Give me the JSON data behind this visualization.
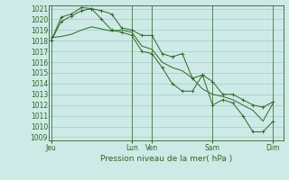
{
  "xlabel": "Pression niveau de la mer( hPa )",
  "bg_color": "#ceeae6",
  "grid_color": "#a0cccc",
  "line_color": "#2d6628",
  "ymin": 1009,
  "ymax": 1021,
  "yticks": [
    1009,
    1010,
    1011,
    1012,
    1013,
    1014,
    1015,
    1016,
    1017,
    1018,
    1019,
    1020,
    1021
  ],
  "day_labels": [
    "Jeu",
    "Lun",
    "Ven",
    "Sam",
    "Dim"
  ],
  "day_positions": [
    0.0,
    4.0,
    5.0,
    8.0,
    11.0
  ],
  "xmin": -0.1,
  "xmax": 11.5,
  "series1_x": [
    0,
    0.5,
    1.0,
    1.5,
    2.0,
    2.5,
    3.0,
    3.5,
    4.0,
    4.5,
    5.0,
    5.5,
    6.0,
    6.5,
    7.0,
    7.5,
    8.0,
    8.5,
    9.0,
    9.5,
    10.0,
    10.5,
    11.0
  ],
  "series1_y": [
    1018.0,
    1020.2,
    1020.5,
    1021.1,
    1021.0,
    1020.8,
    1020.5,
    1019.2,
    1019.0,
    1018.5,
    1018.5,
    1016.8,
    1016.5,
    1016.8,
    1014.5,
    1014.8,
    1014.2,
    1013.0,
    1013.0,
    1012.5,
    1012.0,
    1011.8,
    1012.3
  ],
  "series2_x": [
    0,
    0.5,
    1.0,
    1.5,
    2.0,
    2.5,
    3.0,
    3.5,
    4.0,
    4.5,
    5.0,
    5.5,
    6.0,
    6.5,
    7.0,
    7.5,
    8.0,
    8.5,
    9.0,
    9.5,
    10.0,
    10.5,
    11.0
  ],
  "series2_y": [
    1018.3,
    1018.4,
    1018.6,
    1019.0,
    1019.3,
    1019.1,
    1018.9,
    1019.0,
    1018.8,
    1017.5,
    1017.2,
    1016.0,
    1015.5,
    1015.2,
    1014.5,
    1013.5,
    1013.0,
    1012.8,
    1012.5,
    1012.0,
    1011.5,
    1010.5,
    1012.2
  ],
  "series3_x": [
    0,
    0.5,
    1.0,
    1.5,
    2.0,
    2.5,
    3.0,
    3.5,
    4.0,
    4.5,
    5.0,
    5.5,
    6.0,
    6.5,
    7.0,
    7.5,
    8.0,
    8.5,
    9.0,
    9.5,
    10.0,
    10.5,
    11.0
  ],
  "series3_y": [
    1018.0,
    1019.8,
    1020.3,
    1020.8,
    1021.0,
    1020.0,
    1019.0,
    1018.8,
    1018.5,
    1017.0,
    1016.8,
    1015.5,
    1014.0,
    1013.3,
    1013.3,
    1014.8,
    1012.0,
    1012.5,
    1012.2,
    1011.0,
    1009.5,
    1009.5,
    1010.5
  ],
  "xlabel_fontsize": 6.5,
  "tick_fontsize": 5.5
}
